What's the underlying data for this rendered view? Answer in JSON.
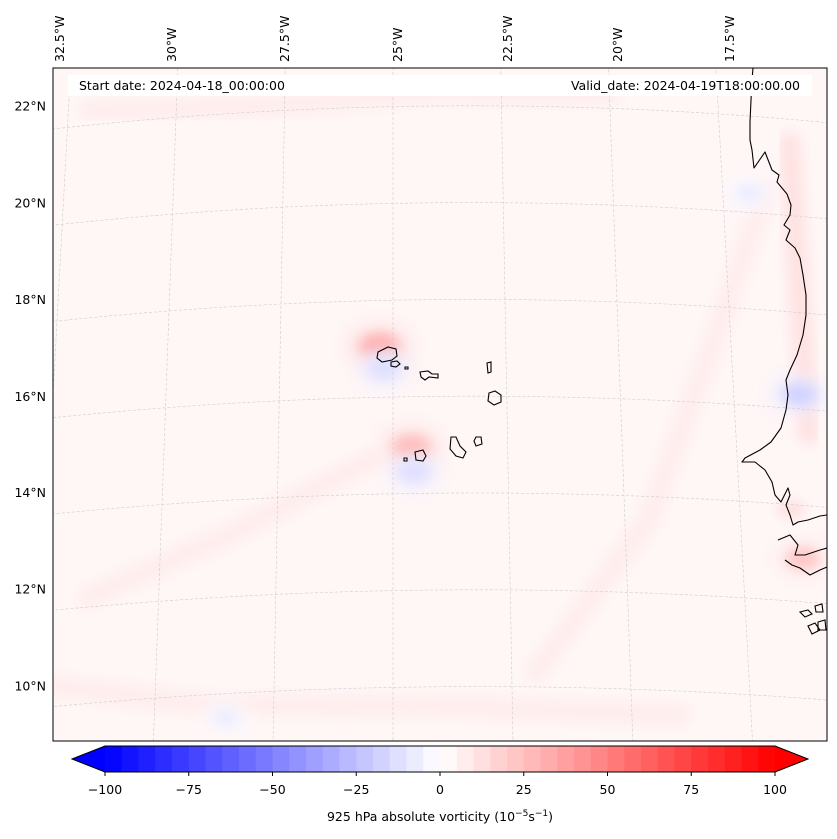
{
  "chart_data": {
    "type": "heatmap",
    "title": "",
    "variable": "925 hPa absolute vorticity",
    "units": "10^-5 s^-1",
    "colormap": "bwr",
    "annotations": {
      "start_date": "Start date: 2024-04-18_00:00:00",
      "valid_date": "Valid_date: 2024-04-19T18:00:00.00"
    },
    "lon_range": [
      -33.0,
      -15.7
    ],
    "lat_range": [
      8.9,
      22.8
    ],
    "lon_ticks": [
      {
        "value": -32.5,
        "label": "32.5°W"
      },
      {
        "value": -30.0,
        "label": "30°W"
      },
      {
        "value": -27.5,
        "label": "27.5°W"
      },
      {
        "value": -25.0,
        "label": "25°W"
      },
      {
        "value": -22.5,
        "label": "22.5°W"
      },
      {
        "value": -20.0,
        "label": "20°W"
      },
      {
        "value": -17.5,
        "label": "17.5°W"
      }
    ],
    "lat_ticks": [
      {
        "value": 22,
        "label": "22°N"
      },
      {
        "value": 20,
        "label": "20°N"
      },
      {
        "value": 18,
        "label": "18°N"
      },
      {
        "value": 16,
        "label": "16°N"
      },
      {
        "value": 14,
        "label": "14°N"
      },
      {
        "value": 12,
        "label": "12°N"
      },
      {
        "value": 10,
        "label": "10°N"
      }
    ],
    "gridlines": true,
    "colorbar": {
      "orientation": "horizontal",
      "placement": "bottom",
      "min": -100,
      "max": 100,
      "step": 5,
      "extend": "both",
      "ticks": [
        {
          "value": -100,
          "label": "−100"
        },
        {
          "value": -75,
          "label": "−75"
        },
        {
          "value": -50,
          "label": "−50"
        },
        {
          "value": -25,
          "label": "−25"
        },
        {
          "value": 0,
          "label": "0"
        },
        {
          "value": 25,
          "label": "25"
        },
        {
          "value": 50,
          "label": "50"
        },
        {
          "value": 75,
          "label": "75"
        },
        {
          "value": 100,
          "label": "100"
        }
      ],
      "label_main": "925 hPa absolute vorticity (10",
      "label_exp1": "−5",
      "label_mid": "s",
      "label_exp2": "−1",
      "label_end": ")"
    },
    "background_value": 3,
    "features": [
      {
        "name": "santo-antao-dipole-pos",
        "lon": -25.3,
        "lat": 17.05,
        "value": 30
      },
      {
        "name": "santo-antao-dipole-neg",
        "lon": -25.2,
        "lat": 16.6,
        "value": -15
      },
      {
        "name": "fogo-brava-dipole-pos",
        "lon": -24.6,
        "lat": 14.95,
        "value": 25
      },
      {
        "name": "fogo-brava-dipole-neg",
        "lon": -24.55,
        "lat": 14.45,
        "value": -15
      },
      {
        "name": "mauritania-coast-neg",
        "lon": -16.05,
        "lat": 16.3,
        "value": -20
      },
      {
        "name": "senegal-gambia-pos",
        "lon": -16.2,
        "lat": 12.9,
        "value": 20
      },
      {
        "name": "senegal-coast-pos",
        "lon": -16.4,
        "lat": 13.9,
        "value": 12
      },
      {
        "name": "mauritania-north-neg",
        "lon": -16.9,
        "lat": 20.4,
        "value": -8
      },
      {
        "name": "southwest-band-neg",
        "lon": -28.5,
        "lat": 9.5,
        "value": -6
      }
    ],
    "bands": [
      {
        "name": "diagonal-band-east",
        "points": [
          [
            -22.0,
            10.3
          ],
          [
            -19.5,
            13.5
          ],
          [
            -18.0,
            17.0
          ],
          [
            -16.5,
            20.5
          ]
        ],
        "value": 8
      },
      {
        "name": "diagonal-band-west",
        "points": [
          [
            -31.5,
            12.2
          ],
          [
            -28.5,
            13.3
          ],
          [
            -25.5,
            14.7
          ]
        ],
        "value": 7
      },
      {
        "name": "south-band",
        "points": [
          [
            -32.5,
            10.5
          ],
          [
            -29.0,
            9.8
          ],
          [
            -24.0,
            9.6
          ],
          [
            -19.0,
            9.5
          ]
        ],
        "value": 7
      },
      {
        "name": "north-band",
        "points": [
          [
            -32.0,
            22.3
          ],
          [
            -28.0,
            22.1
          ],
          [
            -24.0,
            22.3
          ],
          [
            -20.0,
            22.3
          ]
        ],
        "value": 6
      },
      {
        "name": "east-edge-band",
        "points": [
          [
            -15.9,
            21.5
          ],
          [
            -15.9,
            18.0
          ],
          [
            -15.9,
            15.5
          ]
        ],
        "value": 10
      }
    ]
  }
}
